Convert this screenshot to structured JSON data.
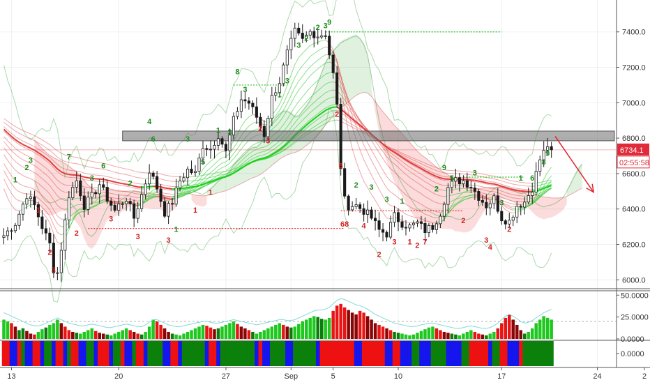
{
  "chart_data": [
    {
      "type": "candlestick",
      "panel": "price",
      "x_tick_labels": [
        "13",
        "20",
        "27",
        "Sep",
        "5",
        "10",
        "17",
        "24",
        "2"
      ],
      "y_ticks": [
        6000,
        6200,
        6400,
        6600,
        6800,
        7000,
        7200,
        7400
      ],
      "y_tick_labels": [
        "6000.0",
        "6200.0",
        "6400.0",
        "6600.0",
        "6800.0",
        "7000.0",
        "7200.0",
        "7400.0"
      ],
      "ylim": [
        5950,
        7580
      ],
      "grid": true,
      "last_price": 6734.1,
      "last_price_label": "6734.1",
      "countdown": "02:55:58",
      "colors": {
        "up": "#1a1a1a",
        "down": "#1a1a1a",
        "last_price_tag": "#e02b3a",
        "resistance_zone": "#7f7f7f",
        "forecast_arrow": "#e0242c"
      },
      "price_path": [
        [
          0,
          6250
        ],
        [
          3,
          6320
        ],
        [
          6,
          6480
        ],
        [
          8,
          6420
        ],
        [
          10,
          6300
        ],
        [
          12,
          6200
        ],
        [
          13,
          6060
        ],
        [
          14,
          6040
        ],
        [
          15,
          6180
        ],
        [
          17,
          6480
        ],
        [
          19,
          6560
        ],
        [
          21,
          6420
        ],
        [
          23,
          6470
        ],
        [
          25,
          6540
        ],
        [
          27,
          6460
        ],
        [
          29,
          6390
        ],
        [
          30,
          6420
        ],
        [
          32,
          6460
        ],
        [
          34,
          6350
        ],
        [
          36,
          6480
        ],
        [
          38,
          6620
        ],
        [
          40,
          6520
        ],
        [
          42,
          6380
        ],
        [
          44,
          6440
        ],
        [
          46,
          6560
        ],
        [
          48,
          6620
        ],
        [
          50,
          6600
        ],
        [
          52,
          6760
        ],
        [
          54,
          6740
        ],
        [
          56,
          6820
        ],
        [
          58,
          6720
        ],
        [
          60,
          6900
        ],
        [
          62,
          7020
        ],
        [
          64,
          7000
        ],
        [
          66,
          6920
        ],
        [
          68,
          6820
        ],
        [
          70,
          7030
        ],
        [
          72,
          7120
        ],
        [
          74,
          7280
        ],
        [
          76,
          7400
        ],
        [
          78,
          7350
        ],
        [
          80,
          7400
        ],
        [
          82,
          7380
        ],
        [
          84,
          7390
        ],
        [
          86,
          7160
        ],
        [
          87,
          6980
        ],
        [
          88,
          6640
        ],
        [
          89,
          6450
        ],
        [
          90,
          6420
        ],
        [
          92,
          6420
        ],
        [
          94,
          6390
        ],
        [
          96,
          6350
        ],
        [
          98,
          6280
        ],
        [
          100,
          6260
        ],
        [
          102,
          6360
        ],
        [
          104,
          6320
        ],
        [
          106,
          6300
        ],
        [
          108,
          6320
        ],
        [
          110,
          6280
        ],
        [
          112,
          6300
        ],
        [
          114,
          6380
        ],
        [
          116,
          6520
        ],
        [
          118,
          6560
        ],
        [
          120,
          6560
        ],
        [
          122,
          6530
        ],
        [
          124,
          6470
        ],
        [
          126,
          6420
        ],
        [
          128,
          6460
        ],
        [
          130,
          6350
        ],
        [
          132,
          6330
        ],
        [
          134,
          6420
        ],
        [
          136,
          6440
        ],
        [
          138,
          6520
        ],
        [
          140,
          6680
        ],
        [
          142,
          6760
        ],
        [
          143,
          6734
        ]
      ],
      "resistance_zone": [
        6785,
        6840
      ],
      "forecast_arrow": {
        "from": [
          144,
          6810
        ],
        "to": [
          154,
          6495
        ]
      },
      "sequential_labels": [
        {
          "t": 3,
          "text": "1",
          "p": 6550,
          "up": true
        },
        {
          "t": 6,
          "text": "2",
          "p": 6620,
          "up": true
        },
        {
          "t": 7,
          "text": "3",
          "p": 6660,
          "up": true
        },
        {
          "t": 9,
          "text": "1",
          "p": 6380,
          "up": false
        },
        {
          "t": 12,
          "text": "2",
          "p": 6140,
          "up": false
        },
        {
          "t": 13,
          "text": "3",
          "p": 6040,
          "up": false
        },
        {
          "t": 17,
          "text": "7",
          "p": 6680,
          "up": true
        },
        {
          "t": 19,
          "text": "2",
          "p": 6250,
          "up": false
        },
        {
          "t": 23,
          "text": "3",
          "p": 6560,
          "up": true
        },
        {
          "t": 26,
          "text": "6",
          "p": 6630,
          "up": true
        },
        {
          "t": 28,
          "text": "3",
          "p": 6330,
          "up": false
        },
        {
          "t": 33,
          "text": "2",
          "p": 6530,
          "up": true
        },
        {
          "t": 35,
          "text": "3",
          "p": 6230,
          "up": false
        },
        {
          "t": 38,
          "text": "4",
          "p": 6880,
          "up": true
        },
        {
          "t": 39,
          "text": "6",
          "p": 6780,
          "up": true
        },
        {
          "t": 43,
          "text": "3",
          "p": 6210,
          "up": false
        },
        {
          "t": 45,
          "text": "1",
          "p": 6270,
          "up": true
        },
        {
          "t": 48,
          "text": "3",
          "p": 6780,
          "up": true
        },
        {
          "t": 50,
          "text": "1",
          "p": 6380,
          "up": false
        },
        {
          "t": 52,
          "text": "5",
          "p": 6650,
          "up": true
        },
        {
          "t": 54,
          "text": "1",
          "p": 6480,
          "up": false
        },
        {
          "t": 56,
          "text": "1",
          "p": 6830,
          "up": true
        },
        {
          "t": 59,
          "text": "3",
          "p": 6820,
          "up": true
        },
        {
          "t": 61,
          "text": "8",
          "p": 7160,
          "up": true
        },
        {
          "t": 63,
          "text": "3",
          "p": 7060,
          "up": true
        },
        {
          "t": 67,
          "text": "2",
          "p": 6840,
          "up": false
        },
        {
          "t": 69,
          "text": "3",
          "p": 6770,
          "up": false
        },
        {
          "t": 72,
          "text": "1",
          "p": 7030,
          "up": true
        },
        {
          "t": 74,
          "text": "3",
          "p": 7110,
          "up": true
        },
        {
          "t": 77,
          "text": "3",
          "p": 7310,
          "up": true
        },
        {
          "t": 79,
          "text": "2",
          "p": 7350,
          "up": true
        },
        {
          "t": 82,
          "text": "2",
          "p": 7410,
          "up": true
        },
        {
          "t": 84,
          "text": "3",
          "p": 7420,
          "up": true
        },
        {
          "t": 85,
          "text": "9",
          "p": 7440,
          "up": true
        },
        {
          "t": 87,
          "text": "2",
          "p": 6920,
          "up": false
        },
        {
          "t": 88,
          "text": "5",
          "p": 6630,
          "up": false
        },
        {
          "t": 89,
          "text": "68",
          "p": 6300,
          "up": false
        },
        {
          "t": 92,
          "text": "2",
          "p": 6520,
          "up": true
        },
        {
          "t": 94,
          "text": "4",
          "p": 6290,
          "up": false
        },
        {
          "t": 96,
          "text": "3",
          "p": 6510,
          "up": true
        },
        {
          "t": 98,
          "text": "2",
          "p": 6130,
          "up": false
        },
        {
          "t": 100,
          "text": "3",
          "p": 6440,
          "up": true
        },
        {
          "t": 102,
          "text": "3",
          "p": 6200,
          "up": false
        },
        {
          "t": 104,
          "text": "1",
          "p": 6430,
          "up": true
        },
        {
          "t": 106,
          "text": "1",
          "p": 6200,
          "up": false
        },
        {
          "t": 108,
          "text": "2",
          "p": 6180,
          "up": false
        },
        {
          "t": 110,
          "text": "7",
          "p": 6200,
          "up": false
        },
        {
          "t": 113,
          "text": "2",
          "p": 6500,
          "up": true
        },
        {
          "t": 115,
          "text": "9",
          "p": 6620,
          "up": true
        },
        {
          "t": 117,
          "text": "5",
          "p": 6560,
          "up": true
        },
        {
          "t": 120,
          "text": "2",
          "p": 6320,
          "up": false
        },
        {
          "t": 123,
          "text": "3",
          "p": 6590,
          "up": true
        },
        {
          "t": 126,
          "text": "3",
          "p": 6210,
          "up": false
        },
        {
          "t": 127,
          "text": "4",
          "p": 6170,
          "up": false
        },
        {
          "t": 130,
          "text": "3",
          "p": 6420,
          "up": true
        },
        {
          "t": 132,
          "text": "2",
          "p": 6270,
          "up": false
        },
        {
          "t": 135,
          "text": "1",
          "p": 6560,
          "up": true
        },
        {
          "t": 138,
          "text": "6",
          "p": 6560,
          "up": true
        },
        {
          "t": 141,
          "text": "8",
          "p": 6650,
          "up": true
        },
        {
          "t": 142,
          "text": "9",
          "p": 6700,
          "up": true
        }
      ]
    },
    {
      "type": "bar",
      "panel": "momentum",
      "y_ticks": [
        0,
        25,
        50
      ],
      "y_tick_labels": [
        "0.0000",
        "25.0000",
        "50.0000"
      ],
      "ylim": [
        0,
        55
      ],
      "colors": {
        "up_strong": "#1ec81e",
        "up_weak": "#0a7d0a",
        "down_strong": "#e81515",
        "down_weak": "#8a0606",
        "line": "#7fd9d9",
        "ref_line": "#b0b0b0"
      },
      "ref_level": 20,
      "values": [
        22,
        20,
        18,
        14,
        10,
        12,
        9,
        6,
        5,
        8,
        11,
        13,
        16,
        18,
        22,
        18,
        14,
        10,
        8,
        7,
        6,
        8,
        10,
        12,
        9,
        7,
        6,
        5,
        4,
        6,
        8,
        10,
        12,
        10,
        8,
        6,
        5,
        8,
        14,
        22,
        20,
        16,
        12,
        8,
        6,
        5,
        4,
        6,
        8,
        10,
        12,
        14,
        16,
        15,
        13,
        11,
        12,
        14,
        16,
        18,
        20,
        17,
        14,
        12,
        10,
        8,
        6,
        8,
        10,
        12,
        14,
        16,
        18,
        16,
        14,
        13,
        14,
        17,
        20,
        22,
        24,
        26,
        25,
        23,
        22,
        24,
        32,
        38,
        40,
        36,
        33,
        30,
        28,
        32,
        30,
        26,
        22,
        18,
        16,
        14,
        12,
        10,
        8,
        7,
        6,
        5,
        4,
        5,
        7,
        9,
        11,
        13,
        14,
        12,
        10,
        8,
        7,
        6,
        5,
        4,
        6,
        8,
        10,
        8,
        6,
        5,
        4,
        6,
        8,
        12,
        18,
        24,
        28,
        22,
        16,
        10,
        6,
        8,
        12,
        18,
        22,
        26,
        24,
        22
      ],
      "kinds": [
        0,
        0,
        2,
        3,
        1,
        1,
        3,
        3,
        2,
        0,
        0,
        1,
        0,
        0,
        0,
        3,
        2,
        2,
        3,
        1,
        0,
        0,
        0,
        0,
        2,
        3,
        3,
        1,
        0,
        0,
        0,
        0,
        0,
        2,
        3,
        2,
        1,
        0,
        0,
        0,
        2,
        2,
        3,
        3,
        1,
        0,
        0,
        0,
        0,
        0,
        0,
        0,
        0,
        2,
        2,
        3,
        1,
        0,
        0,
        0,
        0,
        2,
        3,
        3,
        2,
        1,
        0,
        0,
        0,
        0,
        0,
        0,
        0,
        2,
        3,
        1,
        0,
        0,
        0,
        0,
        0,
        0,
        1,
        1,
        0,
        0,
        2,
        2,
        2,
        2,
        3,
        3,
        3,
        2,
        2,
        3,
        3,
        3,
        2,
        2,
        3,
        2,
        1,
        1,
        0,
        0,
        0,
        0,
        0,
        0,
        0,
        0,
        0,
        2,
        2,
        3,
        3,
        1,
        1,
        0,
        0,
        0,
        0,
        2,
        2,
        3,
        1,
        0,
        0,
        2,
        2,
        2,
        2,
        3,
        3,
        3,
        1,
        0,
        0,
        0,
        0,
        0,
        0,
        0
      ],
      "line_values": [
        30,
        28,
        26,
        24,
        22,
        20,
        18,
        16,
        15,
        15,
        16,
        18,
        20,
        22,
        24,
        22,
        20,
        18,
        17,
        16,
        15,
        15,
        16,
        17,
        16,
        15,
        14,
        13,
        13,
        14,
        15,
        16,
        17,
        16,
        15,
        14,
        14,
        16,
        19,
        22,
        22,
        20,
        18,
        16,
        15,
        14,
        14,
        15,
        16,
        17,
        18,
        19,
        20,
        20,
        19,
        18,
        18,
        19,
        20,
        21,
        22,
        21,
        20,
        19,
        18,
        17,
        16,
        17,
        18,
        19,
        20,
        21,
        22,
        22,
        21,
        21,
        22,
        24,
        26,
        28,
        30,
        32,
        33,
        33,
        34,
        36,
        40,
        44,
        46,
        45,
        43,
        41,
        39,
        38,
        36,
        34,
        31,
        28,
        26,
        24,
        22,
        20,
        18,
        17,
        16,
        15,
        14,
        14,
        15,
        16,
        17,
        18,
        18,
        17,
        16,
        15,
        14,
        13,
        12,
        12,
        13,
        14,
        15,
        14,
        13,
        12,
        12,
        13,
        15,
        18,
        22,
        26,
        28,
        26,
        23,
        20,
        18,
        19,
        21,
        24,
        27,
        30,
        32,
        34
      ]
    },
    {
      "type": "heatmap",
      "panel": "trend-state",
      "y_ticks": [
        0
      ],
      "y_tick_labels": [
        "0.0000"
      ],
      "colors": {
        "state_red": "#ee1111",
        "state_green": "#0b800b",
        "state_blue": "#1515ee"
      },
      "states": [
        0,
        0,
        2,
        2,
        0,
        1,
        2,
        2,
        0,
        0,
        2,
        1,
        1,
        2,
        0,
        0,
        2,
        1,
        0,
        0,
        2,
        2,
        1,
        1,
        2,
        0,
        0,
        0,
        2,
        1,
        1,
        0,
        2,
        2,
        1,
        0,
        0,
        2,
        1,
        1,
        1,
        1,
        2,
        2,
        0,
        0,
        2,
        1,
        1,
        1,
        1,
        1,
        1,
        2,
        0,
        0,
        2,
        1,
        1,
        1,
        1,
        1,
        1,
        1,
        1,
        1,
        2,
        0,
        2,
        2,
        1,
        1,
        1,
        1,
        2,
        2,
        1,
        1,
        1,
        1,
        1,
        1,
        2,
        0,
        0,
        0,
        0,
        0,
        0,
        0,
        0,
        0,
        2,
        2,
        0,
        0,
        0,
        0,
        0,
        0,
        2,
        2,
        0,
        0,
        2,
        2,
        2,
        1,
        1,
        2,
        2,
        2,
        1,
        1,
        1,
        1,
        2,
        2,
        2,
        2,
        1,
        1,
        0,
        0,
        0,
        0,
        0,
        2,
        1,
        1,
        0,
        0,
        2,
        2,
        2,
        0,
        1,
        1,
        1,
        1,
        1,
        1,
        1,
        1
      ]
    }
  ]
}
